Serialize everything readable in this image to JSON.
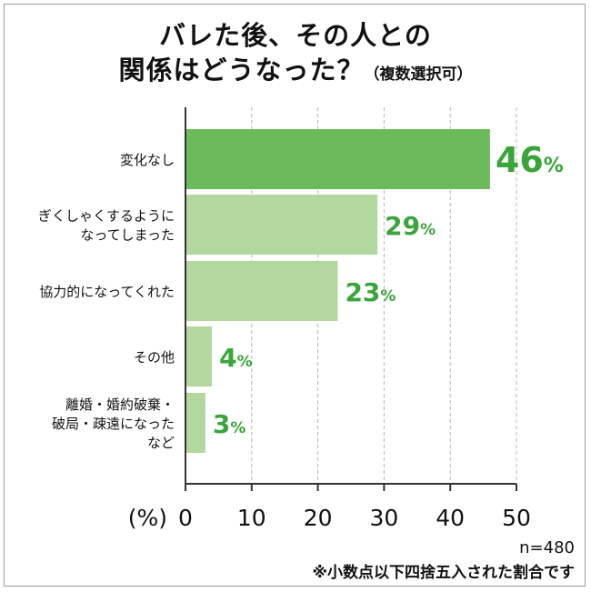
{
  "title": {
    "line1": "バレた後、その人との",
    "line2_main": "関係はどうなった？",
    "line2_sub": "（複数選択可）"
  },
  "chart_data": {
    "type": "bar",
    "orientation": "horizontal",
    "categories": [
      [
        "変化なし"
      ],
      [
        "ぎくしゃくするように",
        "なってしまった"
      ],
      [
        "協力的になってくれた"
      ],
      [
        "その他"
      ],
      [
        "離婚・婚約破棄・",
        "破局・疎遠になった",
        "など"
      ]
    ],
    "values": [
      46,
      29,
      23,
      4,
      3
    ],
    "value_suffix": "%",
    "xlabel": "(%)",
    "xlim": [
      0,
      50
    ],
    "xticks": [
      0,
      10,
      20,
      30,
      40,
      50
    ],
    "grid": true,
    "legend": "none",
    "colors": {
      "highlight_bar": "#6cbb5a",
      "bar": "#b2d89f",
      "value_label": "#3aa53a",
      "grid": "#b5b5b5",
      "axis": "#333333"
    }
  },
  "footer": {
    "sample": "n=480",
    "note": "※小数点以下四捨五入された割合です"
  }
}
